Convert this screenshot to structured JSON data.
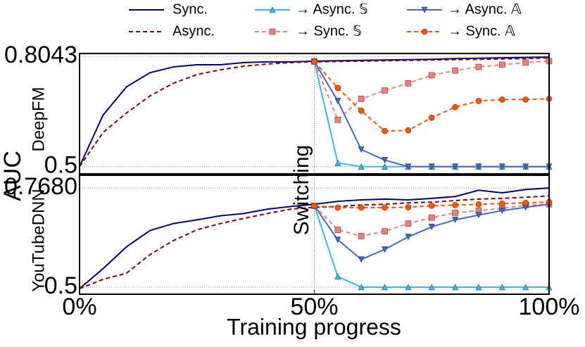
{
  "figure": {
    "ylabel": "AUC",
    "xlabel": "Training progress",
    "annotation": {
      "text": "Switching",
      "x": 50
    }
  },
  "chart_data": [
    {
      "type": "line",
      "ylabel": "DeepFM",
      "x": [
        0,
        5,
        10,
        15,
        20,
        25,
        30,
        35,
        40,
        45,
        50,
        55,
        60,
        65,
        70,
        75,
        80,
        85,
        90,
        95,
        100
      ],
      "xlim": [
        0,
        100
      ],
      "ylim": [
        0.48,
        0.812
      ],
      "yticks": [
        0.5,
        0.8043
      ],
      "grid": true,
      "series": [
        {
          "name": "Sync.",
          "color": "#00007f",
          "dash": "solid",
          "marker": "none",
          "values": [
            0.5,
            0.642,
            0.72,
            0.759,
            0.775,
            0.781,
            0.781,
            0.787,
            0.789,
            0.789,
            0.791,
            0.792,
            0.793,
            0.794,
            0.795,
            0.796,
            0.798,
            0.799,
            0.8,
            0.801,
            0.802
          ]
        },
        {
          "name": "Async.",
          "color": "#8b0000",
          "dash": "dashed",
          "marker": "none",
          "values": [
            0.5,
            0.594,
            0.648,
            0.695,
            0.73,
            0.754,
            0.767,
            0.777,
            0.783,
            0.787,
            0.789,
            0.79,
            0.791,
            0.792,
            0.793,
            0.794,
            0.795,
            0.796,
            0.797,
            0.798,
            0.8
          ]
        },
        {
          "name": "→ Async. 𝕊",
          "color": "#33bbee",
          "dash": "solid",
          "marker": "triangle-up",
          "values": [
            null,
            null,
            null,
            null,
            null,
            null,
            null,
            null,
            null,
            null,
            0.79,
            0.51,
            0.5,
            0.5,
            0.5,
            0.5,
            0.5,
            0.5,
            0.5,
            0.5,
            0.5
          ]
        },
        {
          "name": "→  Sync. 𝕊",
          "color": "#f08080",
          "dash": "dashed",
          "marker": "square",
          "values": [
            null,
            null,
            null,
            null,
            null,
            null,
            null,
            null,
            null,
            null,
            0.79,
            0.629,
            0.687,
            0.71,
            0.73,
            0.752,
            0.765,
            0.775,
            0.781,
            0.787,
            0.791
          ]
        },
        {
          "name": "→ Async. 𝔸",
          "color": "#4466cc",
          "dash": "solid",
          "marker": "triangle-down",
          "values": [
            null,
            null,
            null,
            null,
            null,
            null,
            null,
            null,
            null,
            null,
            0.79,
            0.681,
            0.547,
            0.518,
            0.5,
            0.5,
            0.5,
            0.5,
            0.5,
            0.5,
            0.5
          ]
        },
        {
          "name": "→ Sync. 𝔸",
          "color": "#ff5500",
          "dash": "dashed",
          "marker": "circle",
          "values": [
            null,
            null,
            null,
            null,
            null,
            null,
            null,
            null,
            null,
            null,
            0.79,
            0.717,
            0.654,
            0.598,
            0.6,
            0.635,
            0.664,
            0.681,
            0.685,
            0.685,
            0.687
          ]
        }
      ]
    },
    {
      "type": "line",
      "ylabel": "YouTubeDNN",
      "x": [
        0,
        5,
        10,
        15,
        20,
        25,
        30,
        35,
        40,
        45,
        50,
        55,
        60,
        65,
        70,
        75,
        80,
        85,
        90,
        95,
        100
      ],
      "xlim": [
        0,
        100
      ],
      "ylim": [
        0.481,
        0.8025
      ],
      "xticks": [
        {
          "value": 0,
          "label": "0%"
        },
        {
          "value": 50,
          "label": "50%"
        },
        {
          "value": 100,
          "label": "100%"
        }
      ],
      "yticks": [
        0.5,
        {
          "value": 0.768,
          "label": "0.7680"
        }
      ],
      "grid": true,
      "series": [
        {
          "name": "Sync.",
          "color": "#00007f",
          "dash": "solid",
          "marker": "none",
          "values": [
            0.496,
            0.55,
            0.609,
            0.653,
            0.672,
            0.682,
            0.693,
            0.699,
            0.711,
            0.718,
            0.724,
            0.732,
            0.736,
            0.738,
            0.736,
            0.74,
            0.745,
            0.762,
            0.755,
            0.764,
            0.768
          ]
        },
        {
          "name": "Async.",
          "color": "#8b0000",
          "dash": "dashed",
          "marker": "none",
          "values": [
            0.496,
            0.521,
            0.538,
            0.588,
            0.626,
            0.655,
            0.672,
            0.686,
            0.699,
            0.711,
            0.716,
            0.718,
            0.722,
            0.724,
            0.728,
            0.73,
            0.734,
            0.738,
            0.74,
            0.743,
            0.747
          ]
        },
        {
          "name": "→ Async. 𝕊",
          "color": "#33bbee",
          "dash": "solid",
          "marker": "triangle-up",
          "values": [
            null,
            null,
            null,
            null,
            null,
            null,
            null,
            null,
            null,
            null,
            0.72,
            0.529,
            0.5,
            0.5,
            0.5,
            0.5,
            0.5,
            0.5,
            0.5,
            0.5,
            0.5
          ]
        },
        {
          "name": "→  Sync. 𝕊",
          "color": "#f08080",
          "dash": "dashed",
          "marker": "square",
          "values": [
            null,
            null,
            null,
            null,
            null,
            null,
            null,
            null,
            null,
            null,
            0.72,
            0.655,
            0.638,
            0.651,
            0.672,
            0.688,
            0.701,
            0.707,
            0.713,
            0.722,
            0.724
          ]
        },
        {
          "name": "→ Async. 𝔸",
          "color": "#4466cc",
          "dash": "solid",
          "marker": "triangle-down",
          "values": [
            null,
            null,
            null,
            null,
            null,
            null,
            null,
            null,
            null,
            null,
            0.72,
            0.628,
            0.575,
            0.602,
            0.636,
            0.663,
            0.682,
            0.695,
            0.707,
            0.716,
            0.724
          ]
        },
        {
          "name": "→ Sync. 𝔸",
          "color": "#ff5500",
          "dash": "dashed",
          "marker": "circle",
          "values": [
            null,
            null,
            null,
            null,
            null,
            null,
            null,
            null,
            null,
            null,
            0.72,
            0.715,
            0.715,
            0.715,
            0.716,
            0.72,
            0.722,
            0.724,
            0.726,
            0.728,
            0.73
          ]
        }
      ]
    }
  ]
}
